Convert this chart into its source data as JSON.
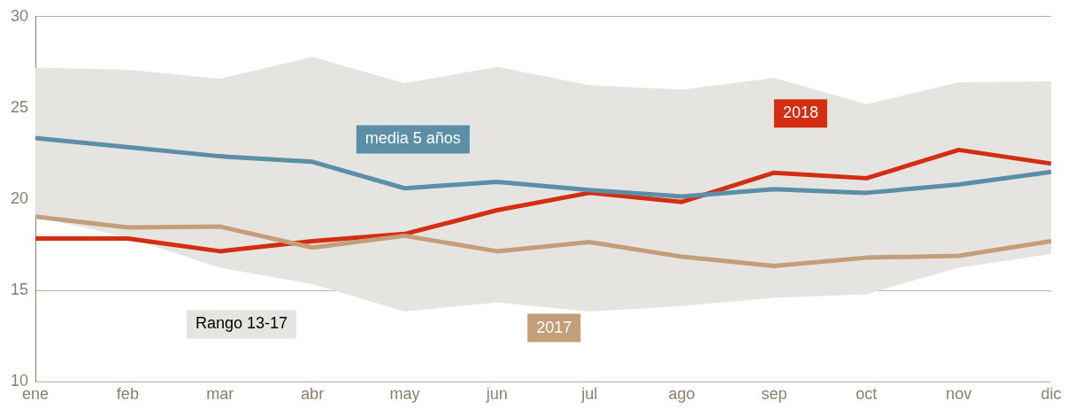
{
  "chart_data": {
    "type": "line",
    "categories": [
      "ene",
      "feb",
      "mar",
      "abr",
      "may",
      "jun",
      "jul",
      "ago",
      "sep",
      "oct",
      "nov",
      "dic"
    ],
    "ylim": [
      10,
      30
    ],
    "yticks": [
      10,
      15,
      20,
      25,
      30
    ],
    "grid": "y",
    "legend": false,
    "marker": "none",
    "line_style": "solid",
    "annotations": [
      "Rango 13-17"
    ],
    "series": [
      {
        "name": "media 5 años",
        "color": "#5b8fa8",
        "values": [
          23.35,
          22.85,
          22.35,
          22.05,
          20.6,
          20.95,
          20.5,
          20.15,
          20.55,
          20.35,
          20.8,
          21.5
        ],
        "lower": [
          19.05,
          17.9,
          16.25,
          15.35,
          13.85,
          14.35,
          13.85,
          14.15,
          14.6,
          14.8,
          16.25,
          17.0
        ],
        "upper": [
          27.2,
          27.1,
          26.6,
          27.8,
          26.35,
          27.25,
          26.25,
          26.0,
          26.65,
          25.2,
          26.4,
          26.45
        ]
      },
      {
        "name": "2017",
        "color": "#c49e78",
        "values": [
          19.05,
          18.45,
          18.5,
          17.35,
          18.0,
          17.15,
          17.65,
          16.85,
          16.35,
          16.8,
          16.9,
          17.7
        ]
      },
      {
        "name": "2018",
        "color": "#d42e12",
        "values": [
          17.85,
          17.85,
          17.15,
          17.7,
          18.1,
          19.4,
          20.35,
          19.85,
          21.45,
          21.15,
          22.7,
          21.95
        ]
      }
    ]
  }
}
